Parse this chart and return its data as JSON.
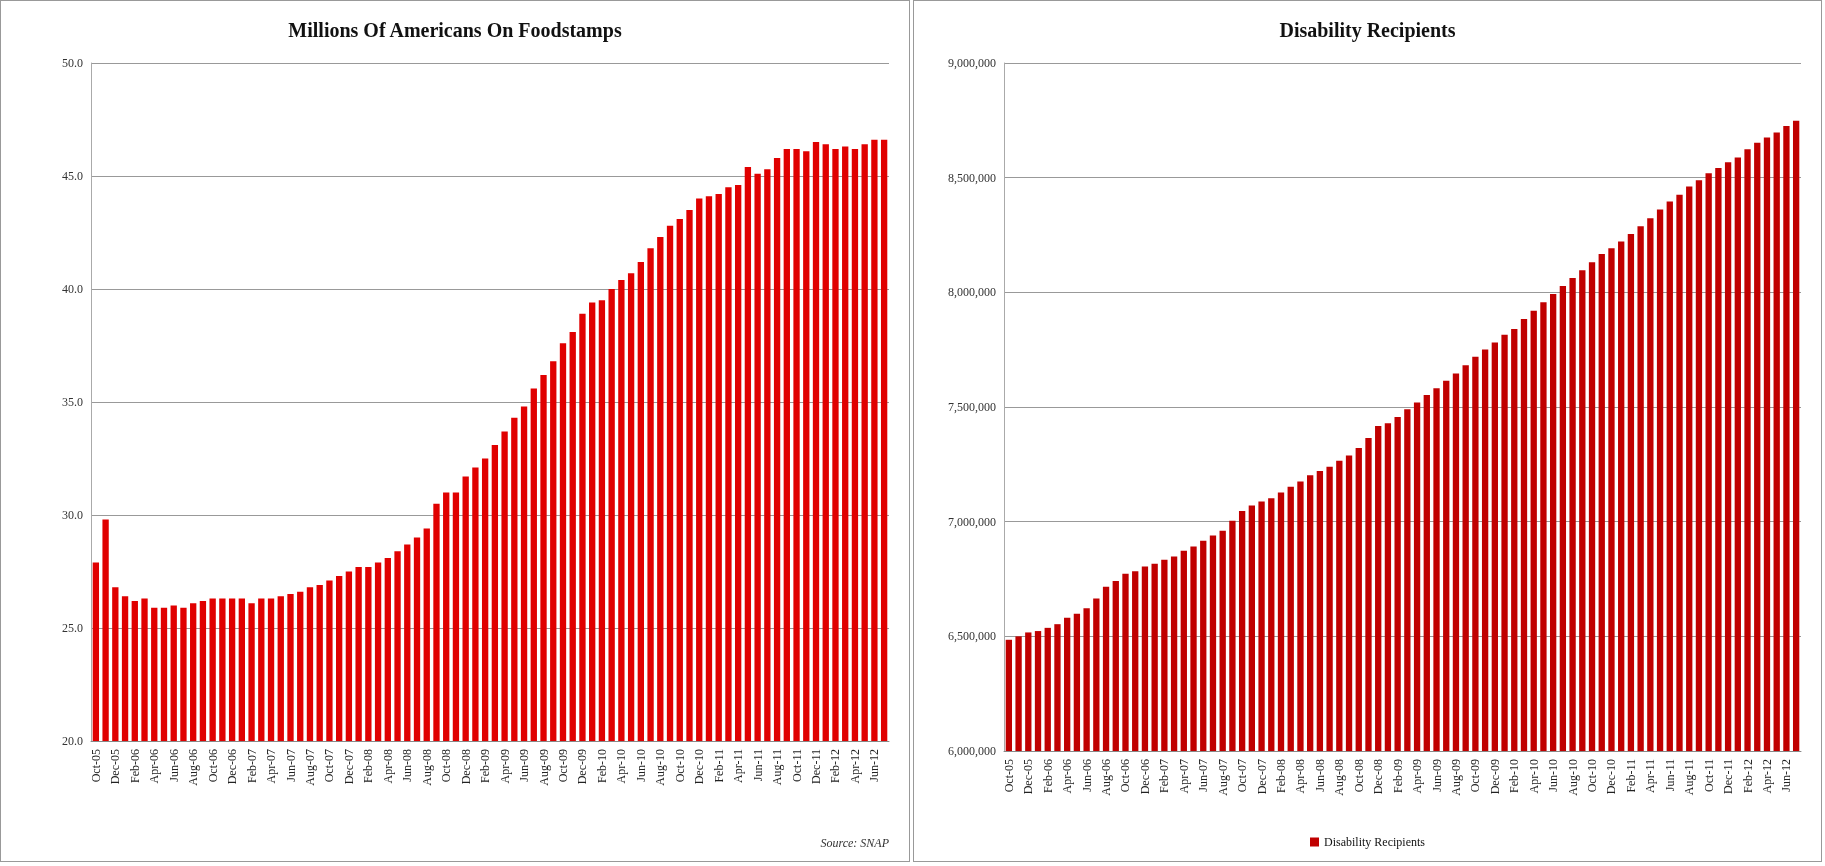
{
  "chart_data": [
    {
      "type": "bar",
      "title": "Millions Of Americans On Foodstamps",
      "categories": [
        "Oct-05",
        null,
        "Dec-05",
        null,
        "Feb-06",
        null,
        "Apr-06",
        null,
        "Jun-06",
        null,
        "Aug-06",
        null,
        "Oct-06",
        null,
        "Dec-06",
        null,
        "Feb-07",
        null,
        "Apr-07",
        null,
        "Jun-07",
        null,
        "Aug-07",
        null,
        "Oct-07",
        null,
        "Dec-07",
        null,
        "Feb-08",
        null,
        "Apr-08",
        null,
        "Jun-08",
        null,
        "Aug-08",
        null,
        "Oct-08",
        null,
        "Dec-08",
        null,
        "Feb-09",
        null,
        "Apr-09",
        null,
        "Jun-09",
        null,
        "Aug-09",
        null,
        "Oct-09",
        null,
        "Dec-09",
        null,
        "Feb-10",
        null,
        "Apr-10",
        null,
        "Jun-10",
        null,
        "Aug-10",
        null,
        "Oct-10",
        null,
        "Dec-10",
        null,
        "Feb-11",
        null,
        "Apr-11",
        null,
        "Jun-11",
        null,
        "Aug-11",
        null,
        "Oct-11",
        null,
        "Dec-11",
        null,
        "Feb-12",
        null,
        "Apr-12",
        null,
        "Jun-12",
        null
      ],
      "series": [
        {
          "color": "#e00000",
          "values": [
            27.9,
            29.8,
            26.8,
            26.4,
            26.2,
            26.3,
            25.9,
            25.9,
            26.0,
            25.9,
            26.1,
            26.2,
            26.3,
            26.3,
            26.3,
            26.3,
            26.1,
            26.3,
            26.3,
            26.4,
            26.5,
            26.6,
            26.8,
            26.9,
            27.1,
            27.3,
            27.5,
            27.7,
            27.7,
            27.9,
            28.1,
            28.4,
            28.7,
            29.0,
            29.4,
            30.5,
            31.0,
            31.0,
            31.7,
            32.1,
            32.5,
            33.1,
            33.7,
            34.3,
            34.8,
            35.6,
            36.2,
            36.8,
            37.6,
            38.1,
            38.9,
            39.4,
            39.5,
            40.0,
            40.4,
            40.7,
            41.2,
            41.8,
            42.3,
            42.8,
            43.1,
            43.5,
            44.0,
            44.1,
            44.2,
            44.5,
            44.6,
            45.4,
            45.1,
            45.3,
            45.8,
            46.2,
            46.2,
            46.1,
            46.5,
            46.4,
            46.2,
            46.3,
            46.2,
            46.4,
            46.6,
            46.6
          ]
        }
      ],
      "ylim": [
        20,
        50
      ],
      "yticks": [
        {
          "value": 20,
          "label": "20.0"
        },
        {
          "value": 25,
          "label": "25.0"
        },
        {
          "value": 30,
          "label": "30.0"
        },
        {
          "value": 35,
          "label": "35.0"
        },
        {
          "value": 40,
          "label": "40.0"
        },
        {
          "value": 45,
          "label": "45.0"
        },
        {
          "value": 50,
          "label": "50.0"
        }
      ],
      "grid": "y",
      "legend": false,
      "annotations": [
        "Source: SNAP"
      ]
    },
    {
      "type": "bar",
      "title": "Disability Recipients",
      "categories": [
        "Oct-05",
        null,
        "Dec-05",
        null,
        "Feb-06",
        null,
        "Apr-06",
        null,
        "Jun-06",
        null,
        "Aug-06",
        null,
        "Oct-06",
        null,
        "Dec-06",
        null,
        "Feb-07",
        null,
        "Apr-07",
        null,
        "Jun-07",
        null,
        "Aug-07",
        null,
        "Oct-07",
        null,
        "Dec-07",
        null,
        "Feb-08",
        null,
        "Apr-08",
        null,
        "Jun-08",
        null,
        "Aug-08",
        null,
        "Oct-08",
        null,
        "Dec-08",
        null,
        "Feb-09",
        null,
        "Apr-09",
        null,
        "Jun-09",
        null,
        "Aug-09",
        null,
        "Oct-09",
        null,
        "Dec-09",
        null,
        "Feb-10",
        null,
        "Apr-10",
        null,
        "Jun-10",
        null,
        "Aug-10",
        null,
        "Oct-10",
        null,
        "Dec-10",
        null,
        "Feb-11",
        null,
        "Apr-11",
        null,
        "Jun-11",
        null,
        "Aug-11",
        null,
        "Oct-11",
        null,
        "Dec-11",
        null,
        "Feb-12",
        null,
        "Apr-12",
        null,
        "Jun-12",
        null
      ],
      "series": [
        {
          "name": "Disability Recipients",
          "color": "#c00000",
          "values": [
            6485000,
            6500000,
            6517000,
            6523000,
            6537000,
            6553000,
            6581000,
            6599000,
            6622000,
            6665000,
            6716000,
            6741000,
            6773000,
            6784000,
            6805000,
            6816000,
            6834000,
            6848000,
            6873000,
            6892000,
            6917000,
            6940000,
            6960000,
            7004000,
            7047000,
            7070000,
            7088000,
            7102000,
            7127000,
            7152000,
            7175000,
            7202000,
            7221000,
            7239000,
            7266000,
            7289000,
            7321000,
            7365000,
            7417000,
            7429000,
            7456000,
            7490000,
            7520000,
            7552000,
            7582000,
            7614000,
            7646000,
            7682000,
            7719000,
            7751000,
            7781000,
            7815000,
            7840000,
            7884000,
            7920000,
            7957000,
            7993000,
            8028000,
            8062000,
            8096000,
            8131000,
            8167000,
            8192000,
            8222000,
            8254000,
            8288000,
            8323000,
            8361000,
            8396000,
            8425000,
            8462000,
            8489000,
            8519000,
            8542000,
            8567000,
            8588000,
            8624000,
            8652000,
            8675000,
            8697000,
            8725000,
            8748000
          ]
        }
      ],
      "ylim": [
        6000000,
        9000000
      ],
      "yticks": [
        {
          "value": 6000000,
          "label": "6,000,000"
        },
        {
          "value": 6500000,
          "label": "6,500,000"
        },
        {
          "value": 7000000,
          "label": "7,000,000"
        },
        {
          "value": 7500000,
          "label": "7,500,000"
        },
        {
          "value": 8000000,
          "label": "8,000,000"
        },
        {
          "value": 8500000,
          "label": "8,500,000"
        },
        {
          "value": 9000000,
          "label": "9,000,000"
        }
      ],
      "grid": "y",
      "legend": "bottom"
    }
  ]
}
